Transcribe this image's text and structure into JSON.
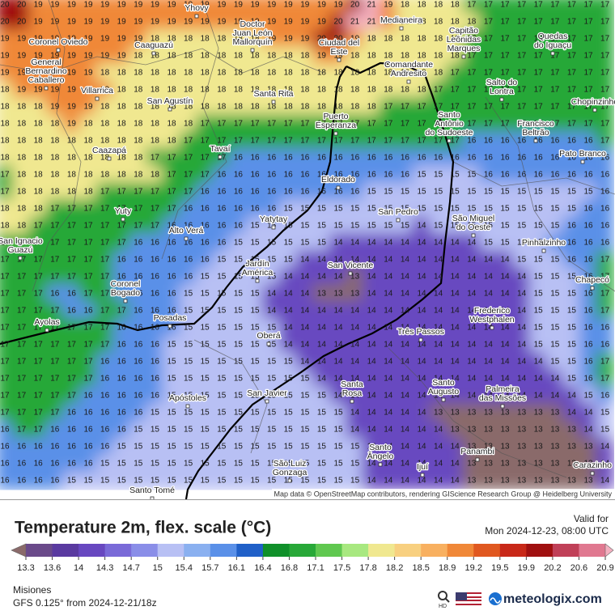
{
  "header": {
    "title": "Temperature 2m, flex. scale (°C)",
    "valid_label": "Valid for",
    "valid_time": "Mon 2024-12-23, 08:00 UTC"
  },
  "footer": {
    "region": "Misiones",
    "model": "GFS 0.125° from  2024-12-21/18z",
    "brand": "meteologix.com",
    "hd": "HD"
  },
  "attribution": "Map data © OpenStreetMap contributors, rendering GIScience Research Group @ Heidelberg University",
  "scale": {
    "labels": [
      13.3,
      13.6,
      14,
      14.3,
      14.7,
      15,
      15.4,
      15.7,
      16.1,
      16.4,
      16.8,
      17.1,
      17.5,
      17.8,
      18.2,
      18.5,
      18.9,
      19.2,
      19.5,
      19.9,
      20.2,
      20.6,
      20.9
    ],
    "colors": [
      "#8a6a6a",
      "#6a4a8a",
      "#5a3aa0",
      "#6848c0",
      "#7a6ad8",
      "#8a8ee8",
      "#b8c0f4",
      "#8ab0f0",
      "#5a90e8",
      "#2060c8",
      "#10902a",
      "#28a838",
      "#60c850",
      "#a8e880",
      "#f0e890",
      "#f8d080",
      "#f8b060",
      "#f08838",
      "#e05820",
      "#c82818",
      "#a01010",
      "#c04058",
      "#e07890",
      "#f4b0c0"
    ]
  },
  "grid": {
    "rows": [
      [
        20,
        20,
        19,
        19,
        19,
        19,
        19,
        19,
        19,
        19,
        19,
        19,
        19,
        19,
        19,
        19,
        19,
        19,
        19,
        19,
        19,
        20,
        21,
        19,
        18,
        18,
        18,
        18,
        17,
        17,
        17,
        17,
        17,
        17,
        17,
        17,
        17
      ],
      [
        20,
        20,
        19,
        19,
        19,
        19,
        19,
        19,
        19,
        19,
        19,
        19,
        19,
        19,
        19,
        19,
        19,
        19,
        19,
        19,
        20,
        21,
        21,
        19,
        18,
        18,
        18,
        18,
        18,
        17,
        17,
        17,
        17,
        17,
        17,
        17,
        17
      ],
      [
        19,
        19,
        19,
        19,
        19,
        19,
        19,
        19,
        19,
        18,
        18,
        18,
        18,
        18,
        18,
        18,
        19,
        19,
        19,
        20,
        20,
        19,
        18,
        18,
        18,
        18,
        18,
        18,
        17,
        17,
        17,
        17,
        17,
        17,
        17,
        17,
        17
      ],
      [
        19,
        19,
        19,
        19,
        19,
        19,
        19,
        19,
        18,
        18,
        18,
        18,
        18,
        18,
        18,
        18,
        18,
        18,
        18,
        19,
        19,
        18,
        18,
        18,
        18,
        18,
        18,
        18,
        17,
        17,
        17,
        17,
        17,
        17,
        17,
        17,
        17
      ],
      [
        19,
        19,
        19,
        19,
        19,
        19,
        18,
        18,
        18,
        18,
        18,
        18,
        18,
        18,
        18,
        18,
        18,
        18,
        18,
        18,
        18,
        18,
        18,
        18,
        18,
        18,
        18,
        17,
        17,
        17,
        17,
        17,
        17,
        17,
        17,
        17,
        17
      ],
      [
        18,
        19,
        19,
        19,
        19,
        19,
        19,
        18,
        18,
        18,
        18,
        18,
        18,
        18,
        18,
        18,
        18,
        18,
        18,
        18,
        18,
        18,
        18,
        18,
        18,
        18,
        17,
        17,
        17,
        17,
        17,
        17,
        17,
        17,
        17,
        17,
        17
      ],
      [
        18,
        18,
        18,
        19,
        19,
        19,
        18,
        18,
        18,
        18,
        18,
        18,
        18,
        18,
        18,
        18,
        18,
        18,
        18,
        18,
        18,
        18,
        18,
        17,
        17,
        17,
        17,
        17,
        17,
        17,
        17,
        17,
        17,
        17,
        17,
        17,
        17
      ],
      [
        18,
        18,
        18,
        18,
        19,
        18,
        18,
        18,
        18,
        18,
        18,
        18,
        17,
        17,
        17,
        17,
        17,
        17,
        17,
        17,
        17,
        17,
        17,
        17,
        17,
        17,
        17,
        17,
        17,
        17,
        17,
        17,
        17,
        17,
        17,
        17,
        17
      ],
      [
        18,
        18,
        18,
        18,
        18,
        18,
        18,
        18,
        18,
        18,
        18,
        17,
        17,
        17,
        17,
        17,
        17,
        17,
        17,
        17,
        17,
        17,
        17,
        17,
        17,
        17,
        17,
        17,
        16,
        16,
        16,
        16,
        16,
        16,
        16,
        16,
        17
      ],
      [
        18,
        18,
        18,
        18,
        18,
        18,
        18,
        18,
        18,
        17,
        17,
        17,
        17,
        17,
        16,
        16,
        16,
        16,
        16,
        16,
        16,
        16,
        16,
        16,
        16,
        16,
        16,
        16,
        16,
        16,
        16,
        16,
        16,
        16,
        16,
        16,
        16
      ],
      [
        17,
        18,
        18,
        18,
        18,
        18,
        18,
        18,
        18,
        18,
        17,
        17,
        17,
        16,
        16,
        16,
        16,
        16,
        16,
        16,
        16,
        16,
        16,
        16,
        16,
        15,
        15,
        15,
        15,
        16,
        16,
        16,
        16,
        16,
        16,
        16,
        16
      ],
      [
        17,
        18,
        18,
        18,
        18,
        18,
        17,
        17,
        17,
        17,
        17,
        17,
        16,
        16,
        16,
        16,
        16,
        16,
        16,
        16,
        16,
        16,
        15,
        15,
        15,
        15,
        15,
        15,
        15,
        15,
        15,
        15,
        15,
        15,
        15,
        15,
        16
      ],
      [
        18,
        18,
        18,
        17,
        17,
        17,
        17,
        17,
        17,
        17,
        17,
        16,
        16,
        16,
        16,
        16,
        16,
        15,
        15,
        15,
        15,
        15,
        15,
        15,
        15,
        15,
        15,
        15,
        15,
        15,
        15,
        15,
        15,
        15,
        15,
        16,
        16
      ],
      [
        18,
        18,
        17,
        17,
        17,
        17,
        17,
        17,
        17,
        17,
        16,
        16,
        16,
        16,
        16,
        15,
        15,
        15,
        15,
        15,
        15,
        15,
        15,
        15,
        15,
        14,
        15,
        15,
        15,
        15,
        15,
        15,
        15,
        15,
        16,
        16,
        16
      ],
      [
        17,
        17,
        17,
        17,
        17,
        17,
        17,
        17,
        16,
        16,
        16,
        16,
        16,
        16,
        15,
        15,
        15,
        15,
        15,
        15,
        14,
        14,
        14,
        14,
        14,
        14,
        14,
        14,
        14,
        15,
        15,
        15,
        15,
        16,
        16,
        16,
        16
      ],
      [
        17,
        17,
        17,
        17,
        17,
        17,
        17,
        16,
        16,
        16,
        16,
        16,
        16,
        15,
        15,
        15,
        15,
        15,
        14,
        14,
        14,
        14,
        14,
        14,
        14,
        14,
        14,
        14,
        14,
        14,
        14,
        15,
        15,
        15,
        16,
        16,
        17
      ],
      [
        17,
        17,
        17,
        17,
        17,
        17,
        17,
        16,
        16,
        16,
        16,
        16,
        15,
        15,
        15,
        15,
        15,
        14,
        14,
        14,
        14,
        13,
        14,
        14,
        14,
        14,
        14,
        14,
        14,
        14,
        14,
        14,
        15,
        15,
        15,
        16,
        17
      ],
      [
        17,
        17,
        17,
        16,
        16,
        17,
        17,
        16,
        16,
        16,
        16,
        15,
        15,
        15,
        15,
        15,
        14,
        14,
        14,
        13,
        13,
        13,
        14,
        14,
        14,
        14,
        14,
        14,
        14,
        14,
        14,
        14,
        15,
        15,
        15,
        16,
        17
      ],
      [
        17,
        17,
        17,
        17,
        16,
        16,
        17,
        17,
        16,
        16,
        16,
        15,
        15,
        15,
        15,
        15,
        14,
        14,
        14,
        14,
        14,
        14,
        14,
        14,
        14,
        14,
        14,
        14,
        14,
        14,
        14,
        14,
        15,
        15,
        15,
        16,
        17
      ],
      [
        17,
        17,
        17,
        17,
        17,
        17,
        17,
        16,
        16,
        16,
        16,
        15,
        15,
        15,
        15,
        15,
        15,
        14,
        14,
        14,
        14,
        14,
        14,
        14,
        14,
        14,
        14,
        14,
        14,
        14,
        14,
        14,
        15,
        15,
        15,
        16,
        16
      ],
      [
        17,
        17,
        17,
        17,
        17,
        17,
        17,
        16,
        16,
        16,
        15,
        15,
        15,
        15,
        15,
        15,
        15,
        14,
        14,
        14,
        14,
        14,
        14,
        14,
        14,
        14,
        14,
        14,
        14,
        14,
        14,
        14,
        15,
        15,
        15,
        16,
        16
      ],
      [
        17,
        17,
        17,
        17,
        17,
        17,
        16,
        16,
        16,
        16,
        15,
        15,
        15,
        15,
        15,
        15,
        15,
        15,
        14,
        14,
        14,
        14,
        14,
        14,
        14,
        14,
        14,
        14,
        14,
        14,
        14,
        14,
        14,
        15,
        15,
        16,
        17
      ],
      [
        17,
        17,
        17,
        17,
        17,
        17,
        16,
        16,
        16,
        16,
        15,
        15,
        15,
        15,
        15,
        15,
        15,
        15,
        15,
        14,
        14,
        14,
        14,
        14,
        14,
        14,
        14,
        14,
        14,
        14,
        14,
        14,
        14,
        14,
        15,
        16,
        17
      ],
      [
        17,
        17,
        17,
        17,
        17,
        16,
        16,
        16,
        16,
        16,
        15,
        15,
        15,
        15,
        15,
        15,
        15,
        15,
        15,
        15,
        14,
        14,
        14,
        14,
        14,
        14,
        14,
        14,
        14,
        14,
        14,
        14,
        14,
        14,
        14,
        15,
        16
      ],
      [
        17,
        17,
        17,
        17,
        16,
        16,
        16,
        16,
        16,
        15,
        15,
        15,
        15,
        15,
        15,
        15,
        15,
        15,
        15,
        15,
        15,
        14,
        14,
        14,
        14,
        14,
        13,
        13,
        13,
        13,
        13,
        13,
        13,
        13,
        14,
        14,
        15
      ],
      [
        16,
        17,
        17,
        16,
        16,
        16,
        16,
        16,
        15,
        15,
        15,
        15,
        15,
        15,
        15,
        15,
        15,
        15,
        15,
        15,
        15,
        14,
        14,
        14,
        14,
        14,
        14,
        13,
        13,
        13,
        13,
        13,
        13,
        13,
        13,
        14,
        15
      ],
      [
        16,
        16,
        16,
        16,
        16,
        16,
        16,
        15,
        15,
        15,
        15,
        15,
        15,
        15,
        15,
        15,
        15,
        15,
        15,
        15,
        15,
        15,
        14,
        14,
        14,
        14,
        14,
        14,
        13,
        13,
        13,
        13,
        13,
        13,
        13,
        13,
        14
      ],
      [
        16,
        16,
        16,
        16,
        16,
        16,
        15,
        15,
        15,
        15,
        15,
        15,
        15,
        15,
        15,
        15,
        15,
        15,
        15,
        15,
        15,
        15,
        14,
        14,
        14,
        14,
        14,
        14,
        13,
        13,
        13,
        13,
        13,
        13,
        13,
        13,
        14
      ],
      [
        16,
        16,
        16,
        16,
        15,
        15,
        15,
        15,
        15,
        15,
        15,
        15,
        15,
        15,
        15,
        15,
        15,
        15,
        15,
        15,
        15,
        15,
        14,
        14,
        14,
        14,
        14,
        14,
        13,
        13,
        13,
        13,
        13,
        13,
        13,
        13,
        14
      ]
    ]
  },
  "cities": [
    {
      "lines": [
        "Yhovy"
      ]
    },
    {
      "lines": [
        "Coronel Oviedo"
      ]
    },
    {
      "lines": [
        "Caaguazú"
      ]
    },
    {
      "lines": [
        "Doctor",
        "Juan León",
        "Mallorquín"
      ]
    },
    {
      "lines": [
        "Ciudad del",
        "Este"
      ]
    },
    {
      "lines": [
        "Medianeira"
      ]
    },
    {
      "lines": [
        "Capitão",
        "Leônidas",
        "Marques"
      ]
    },
    {
      "lines": [
        "Quedas",
        "do Iguaçu"
      ]
    },
    {
      "lines": [
        "General",
        "Bernardino",
        "Caballero"
      ]
    },
    {
      "lines": [
        "Villarrica"
      ]
    },
    {
      "lines": [
        "San Agustín"
      ]
    },
    {
      "lines": [
        "Santa Rita"
      ]
    },
    {
      "lines": [
        "Comandante",
        "Andresito"
      ]
    },
    {
      "lines": [
        "Salto do",
        "Lontra"
      ]
    },
    {
      "lines": [
        "Chopinzinho"
      ]
    },
    {
      "lines": [
        "Puerto",
        "Esperanza"
      ]
    },
    {
      "lines": [
        "Santo",
        "Antônio",
        "do Sudoeste"
      ]
    },
    {
      "lines": [
        "Francisco",
        "Beltrão"
      ]
    },
    {
      "lines": [
        "Pato Branco"
      ]
    },
    {
      "lines": [
        "Caazapá"
      ]
    },
    {
      "lines": [
        "Tavaí"
      ]
    },
    {
      "lines": [
        "Eldorado"
      ]
    },
    {
      "lines": [
        "Yuty"
      ]
    },
    {
      "lines": [
        "San Pedro"
      ]
    },
    {
      "lines": [
        "São Miguel",
        "do Oeste"
      ]
    },
    {
      "lines": [
        "Yatytay"
      ]
    },
    {
      "lines": [
        "Alto Verá"
      ]
    },
    {
      "lines": [
        "San Ignacio",
        "Guazú"
      ]
    },
    {
      "lines": [
        "Jardín",
        "América"
      ]
    },
    {
      "lines": [
        "San Vicente"
      ]
    },
    {
      "lines": [
        "Pinhalzinho"
      ]
    },
    {
      "lines": [
        "Chapecó"
      ]
    },
    {
      "lines": [
        "Coronel",
        "Bogado"
      ]
    },
    {
      "lines": [
        "Frederico",
        "Westphalen"
      ]
    },
    {
      "lines": [
        "Ayolas"
      ]
    },
    {
      "lines": [
        "Posadas"
      ]
    },
    {
      "lines": [
        "Oberá"
      ]
    },
    {
      "lines": [
        "Três Passos"
      ]
    },
    {
      "lines": [
        "Santa",
        "Rosa"
      ]
    },
    {
      "lines": [
        "Santo",
        "Augusto"
      ]
    },
    {
      "lines": [
        "Palmeira",
        "das Missões"
      ]
    },
    {
      "lines": [
        "San Javier"
      ]
    },
    {
      "lines": [
        "Apóstoles"
      ]
    },
    {
      "lines": [
        "Santo",
        "Ângelo"
      ]
    },
    {
      "lines": [
        "Panambi"
      ]
    },
    {
      "lines": [
        "Ijuí"
      ]
    },
    {
      "lines": [
        "São Luiz",
        "Gonzaga"
      ]
    },
    {
      "lines": [
        "Carazinho"
      ]
    },
    {
      "lines": [
        "Santo Tomé"
      ]
    }
  ]
}
